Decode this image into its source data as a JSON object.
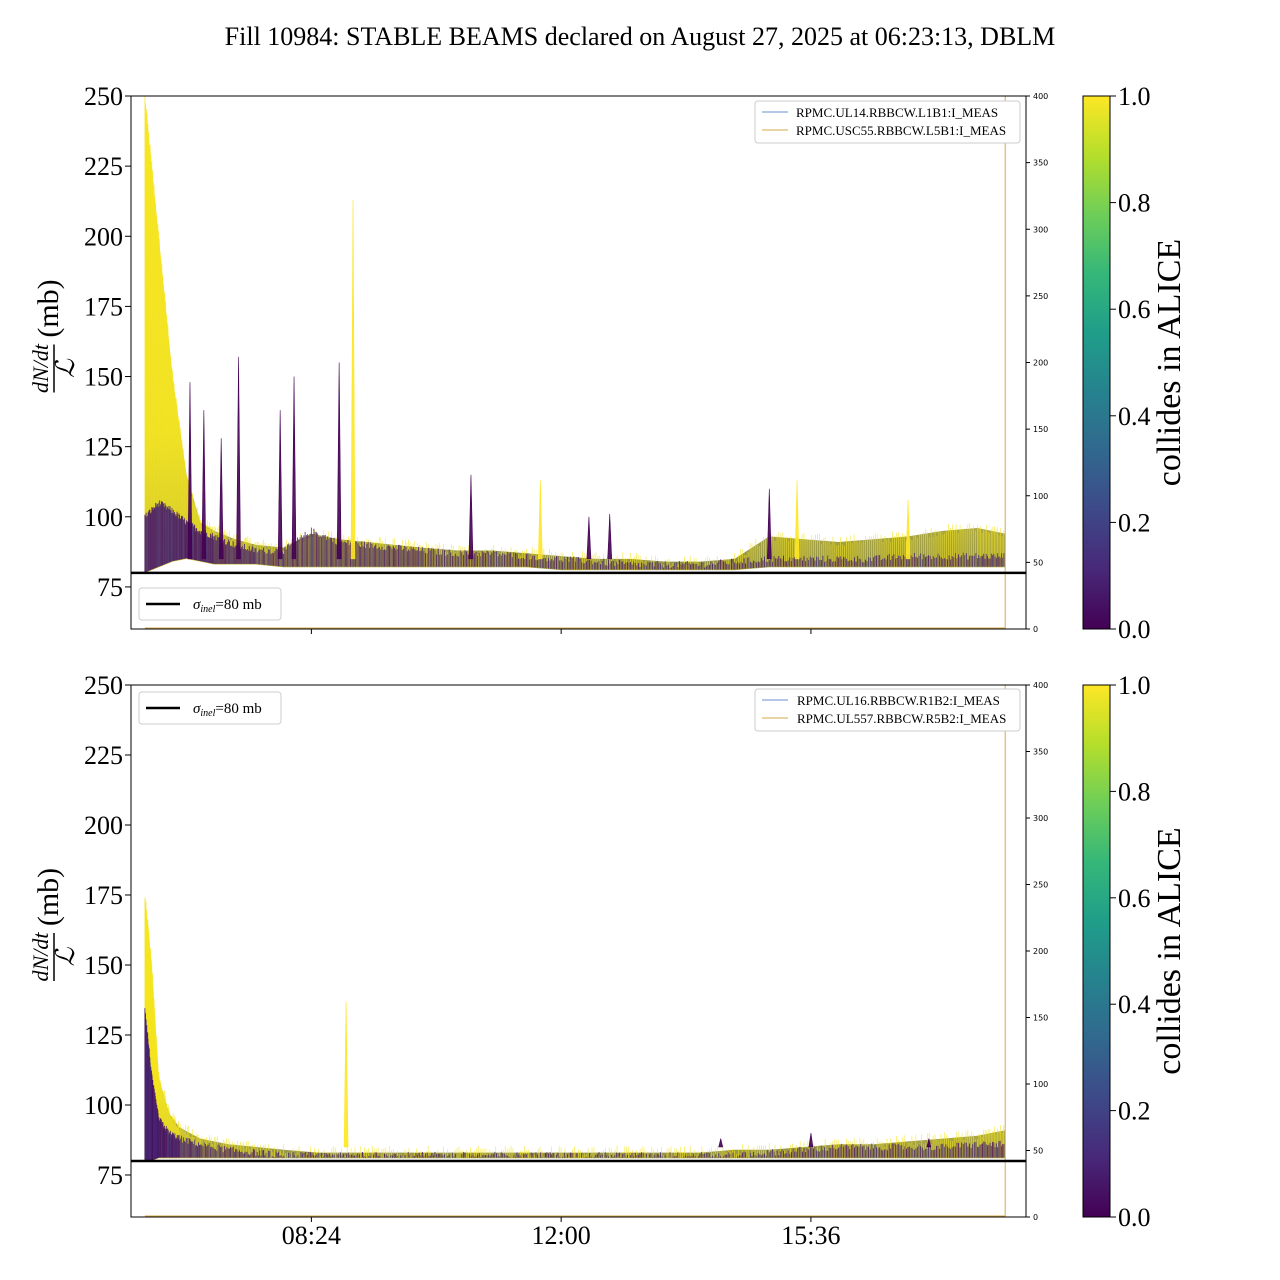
{
  "title": "Fill 10984: STABLE BEAMS declared on August 27, 2025 at 06:23:13, DBLM",
  "colors": {
    "viridis": [
      "#440154",
      "#482878",
      "#3e4989",
      "#31688e",
      "#26828e",
      "#1f9e89",
      "#35b779",
      "#6ece58",
      "#b5de2b",
      "#fde725"
    ],
    "blm_line_1": "#6a8fd0",
    "blm_line_2": "#d4a94a",
    "reference_line": "#000000",
    "high": "#f5e61d",
    "low": "#440154"
  },
  "chart_data": [
    {
      "type": "scatter",
      "panel": "top",
      "ylabel_math": {
        "num": "dN/dt",
        "den": "ℒ",
        "unit": "(mb)"
      },
      "ylim": [
        60,
        250
      ],
      "yticks": [
        75,
        100,
        125,
        150,
        175,
        200,
        225,
        250
      ],
      "xtick_labels": [
        "08:24",
        "12:00",
        "15:36"
      ],
      "xticks_hours": [
        8.4,
        12.0,
        15.6
      ],
      "xlim_hours": [
        5.8,
        18.7
      ],
      "secondary_ylim": [
        0,
        400
      ],
      "secondary_yticks": [
        0,
        50,
        100,
        150,
        200,
        250,
        300,
        350,
        400
      ],
      "hline": {
        "y": 80,
        "label_sym": "σ",
        "label_sub": "inel",
        "label_rest": "=80 mb"
      },
      "legend_reference_position": "lower-left",
      "legend_series_position": "upper-right",
      "series": [
        {
          "name": "RPMC.UL14.RBBCW.L1B1:I_MEAS",
          "color": "#6a8fd0"
        },
        {
          "name": "RPMC.USC55.RBBCW.L5B1:I_MEAS",
          "color": "#d4a94a"
        }
      ],
      "band": {
        "x": [
          6.0,
          6.2,
          6.4,
          6.6,
          6.8,
          7.0,
          7.3,
          7.6,
          8.0,
          8.4,
          8.8,
          9.2,
          9.6,
          10.0,
          10.5,
          11.0,
          11.5,
          12.0,
          12.5,
          13.0,
          13.5,
          14.0,
          14.5,
          15.0,
          15.5,
          16.0,
          16.5,
          17.0,
          17.5,
          18.0,
          18.4
        ],
        "upper": [
          250,
          200,
          150,
          115,
          98,
          95,
          92,
          90,
          89,
          94,
          92,
          91,
          90,
          89,
          88,
          88,
          87,
          86,
          85,
          85,
          84,
          84,
          85,
          93,
          92,
          91,
          92,
          93,
          95,
          96,
          94
        ],
        "lower": [
          80,
          82,
          84,
          85,
          84,
          83,
          83,
          83,
          82,
          82,
          82,
          82,
          82,
          82,
          82,
          82,
          82,
          81,
          81,
          81,
          81,
          81,
          81,
          82,
          82,
          82,
          82,
          82,
          82,
          82,
          82
        ],
        "purple_upper": [
          100,
          105,
          102,
          98,
          95,
          93,
          90,
          88,
          88,
          95,
          91,
          90,
          89,
          88,
          87,
          87,
          86,
          85,
          84,
          83,
          83,
          83,
          84,
          85,
          85,
          85,
          85,
          86,
          86,
          86,
          86
        ]
      },
      "spikes": [
        {
          "x": 6.65,
          "y": 148,
          "c": 0.0
        },
        {
          "x": 6.85,
          "y": 138,
          "c": 0.0
        },
        {
          "x": 7.1,
          "y": 128,
          "c": 0.0
        },
        {
          "x": 7.35,
          "y": 157,
          "c": 0.0
        },
        {
          "x": 7.95,
          "y": 138,
          "c": 0.0
        },
        {
          "x": 8.15,
          "y": 150,
          "c": 0.0
        },
        {
          "x": 8.8,
          "y": 155,
          "c": 0.0
        },
        {
          "x": 9.0,
          "y": 213,
          "c": 1.0
        },
        {
          "x": 10.7,
          "y": 115,
          "c": 0.0
        },
        {
          "x": 11.7,
          "y": 113,
          "c": 1.0
        },
        {
          "x": 12.4,
          "y": 100,
          "c": 0.0
        },
        {
          "x": 12.7,
          "y": 101,
          "c": 0.0
        },
        {
          "x": 15.0,
          "y": 110,
          "c": 0.0
        },
        {
          "x": 15.4,
          "y": 113,
          "c": 1.0
        },
        {
          "x": 17.0,
          "y": 106,
          "c": 1.0
        }
      ],
      "event_x_hours": 18.4
    },
    {
      "type": "scatter",
      "panel": "bottom",
      "ylabel_math": {
        "num": "dN/dt",
        "den": "ℒ",
        "unit": "(mb)"
      },
      "ylim": [
        60,
        250
      ],
      "yticks": [
        75,
        100,
        125,
        150,
        175,
        200,
        225,
        250
      ],
      "xtick_labels": [
        "08:24",
        "12:00",
        "15:36"
      ],
      "xticks_hours": [
        8.4,
        12.0,
        15.6
      ],
      "xlim_hours": [
        5.8,
        18.7
      ],
      "secondary_ylim": [
        0,
        400
      ],
      "secondary_yticks": [
        0,
        50,
        100,
        150,
        200,
        250,
        300,
        350,
        400
      ],
      "hline": {
        "y": 80,
        "label_sym": "σ",
        "label_sub": "inel",
        "label_rest": "=80 mb"
      },
      "legend_reference_position": "upper-left",
      "legend_series_position": "upper-right",
      "series": [
        {
          "name": "RPMC.UL16.RBBCW.R1B2:I_MEAS",
          "color": "#6a8fd0"
        },
        {
          "name": "RPMC.UL557.RBBCW.R5B2:I_MEAS",
          "color": "#d4a94a"
        }
      ],
      "band": {
        "x": [
          6.0,
          6.1,
          6.2,
          6.35,
          6.5,
          6.8,
          7.2,
          7.6,
          8.0,
          8.5,
          9.0,
          9.5,
          10.0,
          10.5,
          11.0,
          11.5,
          12.0,
          12.5,
          13.0,
          13.5,
          14.0,
          14.5,
          15.0,
          15.5,
          16.0,
          16.5,
          17.0,
          17.5,
          18.0,
          18.4
        ],
        "upper": [
          175,
          150,
          110,
          97,
          92,
          88,
          86,
          85,
          84,
          83,
          83,
          83,
          83,
          83,
          83,
          83,
          83,
          83,
          83,
          83,
          83,
          84,
          84,
          85,
          86,
          86,
          87,
          88,
          89,
          91
        ],
        "lower": [
          80,
          80,
          81,
          81,
          81,
          81,
          81,
          81,
          81,
          81,
          81,
          81,
          81,
          81,
          81,
          81,
          81,
          81,
          81,
          81,
          81,
          81,
          81,
          81,
          81,
          81,
          81,
          81,
          81,
          81
        ],
        "purple_upper": [
          135,
          110,
          95,
          90,
          88,
          86,
          84,
          83,
          82,
          82,
          82,
          82,
          82,
          82,
          82,
          82,
          82,
          82,
          82,
          82,
          82,
          82,
          83,
          84,
          85,
          85,
          85,
          85,
          86,
          86
        ]
      },
      "spikes": [
        {
          "x": 8.9,
          "y": 137,
          "c": 1.0
        },
        {
          "x": 14.3,
          "y": 88,
          "c": 0.0
        },
        {
          "x": 15.6,
          "y": 90,
          "c": 0.0
        },
        {
          "x": 17.3,
          "y": 88,
          "c": 0.0
        }
      ],
      "event_x_hours": 18.4
    }
  ],
  "colorbar": {
    "label": "collides in ALICE",
    "ticks": [
      "0.0",
      "0.2",
      "0.4",
      "0.6",
      "0.8",
      "1.0"
    ],
    "range": [
      0,
      1
    ]
  }
}
